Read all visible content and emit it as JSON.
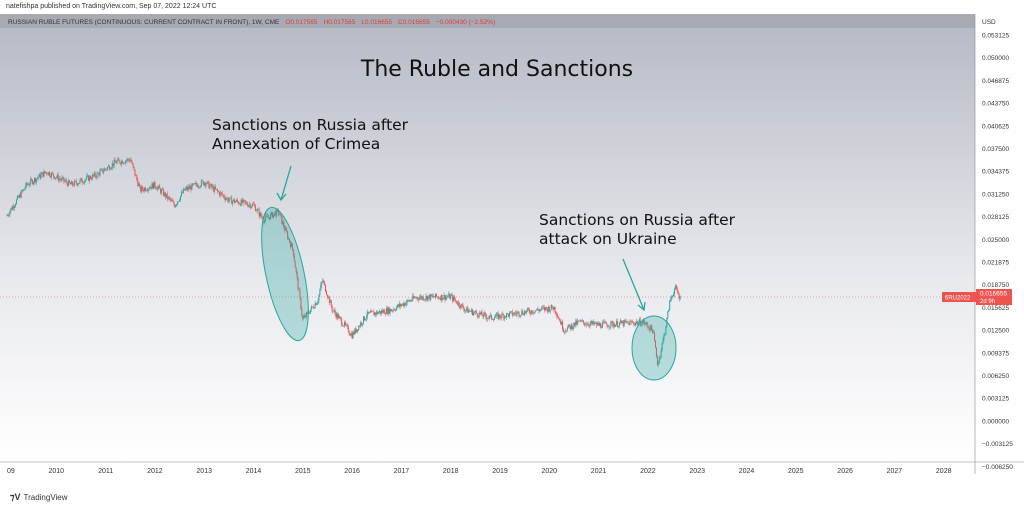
{
  "published": "natefishpa published on TradingView.com, Sep 07, 2022 12:24 UTC",
  "legend": {
    "symbol": "RUSSIAN RUBLE FUTURES (CONTINUOUS: CURRENT CONTRACT IN FRONT), 1W, CME",
    "o": "O0.017565",
    "h": "H0.017565",
    "l": "L0.016655",
    "c": "C0.016655",
    "chg": "−0.000430 (−2.52%)"
  },
  "currency": "USD",
  "price_label": {
    "ticker": "6RU2022",
    "price": "0.016655",
    "countdown": "2d 9h"
  },
  "footer": "TradingView",
  "colors": {
    "up": "#26a69a",
    "down": "#ef5350",
    "annot": "#26a69a"
  },
  "chart_data": {
    "type": "candlestick",
    "title": "The Ruble and Sanctions",
    "annotations": [
      "Sanctions on Russia after Annexation of Crimea",
      "Sanctions on Russia after attack on Ukraine"
    ],
    "annotation_lines": [
      [
        "Sanctions on Russia after",
        "Annexation of Crimea"
      ],
      [
        "Sanctions on Russia after",
        "attack on Ukraine"
      ]
    ],
    "x_ticks": [
      "09",
      "2010",
      "2011",
      "2012",
      "2013",
      "2014",
      "2015",
      "2016",
      "2017",
      "2018",
      "2019",
      "2020",
      "2021",
      "2022",
      "2023",
      "2024",
      "2025",
      "2026",
      "2027",
      "2028"
    ],
    "y_ticks": [
      "0.053125",
      "0.050000",
      "0.046875",
      "0.043750",
      "0.040625",
      "0.037500",
      "0.034375",
      "0.031250",
      "0.028125",
      "0.025000",
      "0.021875",
      "0.018750",
      "0.015625",
      "0.012500",
      "0.009375",
      "0.006250",
      "0.003125",
      "0.000000",
      "−0.003125",
      "−0.006250"
    ],
    "ylim": [
      -0.00625,
      0.053125
    ],
    "key_points": [
      [
        2009.0,
        0.0283
      ],
      [
        2009.4,
        0.0325
      ],
      [
        2009.8,
        0.0343
      ],
      [
        2010.3,
        0.0325
      ],
      [
        2010.8,
        0.0338
      ],
      [
        2011.2,
        0.0356
      ],
      [
        2011.5,
        0.036
      ],
      [
        2011.7,
        0.0318
      ],
      [
        2012.0,
        0.0325
      ],
      [
        2012.4,
        0.0297
      ],
      [
        2012.6,
        0.0318
      ],
      [
        2013.0,
        0.0329
      ],
      [
        2013.5,
        0.0304
      ],
      [
        2014.0,
        0.0297
      ],
      [
        2014.2,
        0.0277
      ],
      [
        2014.5,
        0.0288
      ],
      [
        2014.8,
        0.0235
      ],
      [
        2015.0,
        0.0139
      ],
      [
        2015.3,
        0.0166
      ],
      [
        2015.4,
        0.0194
      ],
      [
        2015.6,
        0.0153
      ],
      [
        2016.0,
        0.0118
      ],
      [
        2016.3,
        0.0146
      ],
      [
        2016.8,
        0.0153
      ],
      [
        2017.3,
        0.017
      ],
      [
        2018.0,
        0.0171
      ],
      [
        2018.3,
        0.0153
      ],
      [
        2018.8,
        0.0142
      ],
      [
        2019.5,
        0.015
      ],
      [
        2020.1,
        0.0156
      ],
      [
        2020.3,
        0.0125
      ],
      [
        2020.6,
        0.0136
      ],
      [
        2021.0,
        0.0132
      ],
      [
        2021.9,
        0.0136
      ],
      [
        2022.1,
        0.0125
      ],
      [
        2022.2,
        0.0077
      ],
      [
        2022.35,
        0.0125
      ],
      [
        2022.45,
        0.0166
      ],
      [
        2022.55,
        0.0183
      ],
      [
        2022.67,
        0.016655
      ]
    ]
  }
}
